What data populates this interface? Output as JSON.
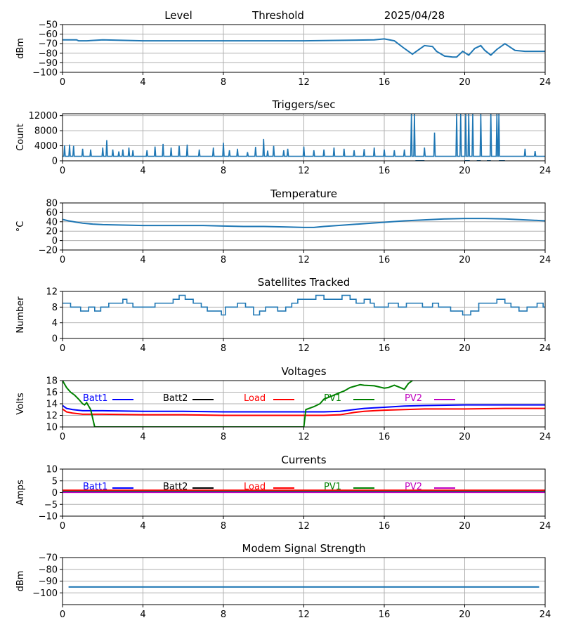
{
  "header": {
    "left": "Level",
    "middle": "Threshold",
    "date": "2025/04/28"
  },
  "colors": {
    "series": "#1f77b4",
    "grid": "#b0b0b0",
    "batt1": "#0000ff",
    "batt2": "#000000",
    "load": "#ff0000",
    "pv1": "#008000",
    "pv2": "#bf00bf"
  },
  "chart_data": [
    {
      "type": "line",
      "title": "",
      "ylabel": "dBm",
      "xlim": [
        0,
        24
      ],
      "ylim": [
        -100,
        -50
      ],
      "xticks": [
        "0",
        "4",
        "8",
        "12",
        "16",
        "20",
        "24"
      ],
      "yticks": [
        "−50",
        "−60",
        "−70",
        "−80",
        "−90",
        "−100"
      ],
      "grid": true,
      "series": [
        {
          "x": [
            0,
            0.7,
            0.8,
            1.2,
            2,
            4,
            8,
            12,
            15.5,
            16,
            16.5,
            17,
            17.4,
            17.6,
            18,
            18.4,
            18.6,
            19,
            19.4,
            19.6,
            19.7,
            19.9,
            20.2,
            20.5,
            20.8,
            21,
            21.3,
            21.6,
            22,
            22.5,
            23,
            23.5,
            24
          ],
          "y": [
            -66,
            -66,
            -67,
            -67,
            -66,
            -67,
            -67,
            -67,
            -66,
            -65,
            -67,
            -75,
            -81,
            -78,
            -72,
            -73,
            -78,
            -83,
            -84,
            -84,
            -82,
            -78,
            -82,
            -75,
            -72,
            -77,
            -82,
            -76,
            -70,
            -77,
            -78,
            -78,
            -78
          ]
        }
      ]
    },
    {
      "type": "line",
      "title": "Triggers/sec",
      "ylabel": "Count",
      "xlim": [
        0,
        24
      ],
      "ylim": [
        0,
        12500
      ],
      "xticks": [
        "0",
        "4",
        "8",
        "12",
        "16",
        "20",
        "24"
      ],
      "yticks": [
        "0",
        "4000",
        "8000",
        "12000"
      ],
      "grid": true,
      "baseline": 1200,
      "spikes": [
        [
          0.1,
          4100
        ],
        [
          0.35,
          4300
        ],
        [
          0.55,
          4000
        ],
        [
          1.0,
          3200
        ],
        [
          1.4,
          3000
        ],
        [
          2.0,
          3500
        ],
        [
          2.2,
          5500
        ],
        [
          2.5,
          3000
        ],
        [
          2.8,
          2500
        ],
        [
          3.0,
          3000
        ],
        [
          3.3,
          3500
        ],
        [
          3.5,
          2800
        ],
        [
          4.2,
          2800
        ],
        [
          4.6,
          3800
        ],
        [
          5.0,
          4500
        ],
        [
          5.4,
          3500
        ],
        [
          5.8,
          4000
        ],
        [
          6.2,
          4300
        ],
        [
          6.8,
          3000
        ],
        [
          7.5,
          3500
        ],
        [
          8.0,
          4800
        ],
        [
          8.3,
          2800
        ],
        [
          8.7,
          3200
        ],
        [
          9.2,
          2300
        ],
        [
          9.6,
          3700
        ],
        [
          10.0,
          5800
        ],
        [
          10.2,
          2700
        ],
        [
          10.5,
          4000
        ],
        [
          11.0,
          2800
        ],
        [
          11.2,
          3200
        ],
        [
          12.0,
          3800
        ],
        [
          12.5,
          2800
        ],
        [
          13.0,
          3000
        ],
        [
          13.5,
          3500
        ],
        [
          14.0,
          3200
        ],
        [
          14.5,
          2800
        ],
        [
          15.0,
          3100
        ],
        [
          15.5,
          3500
        ],
        [
          16.0,
          3000
        ],
        [
          16.5,
          2800
        ],
        [
          17.0,
          3000
        ],
        [
          23.0,
          3200
        ],
        [
          23.5,
          2600
        ]
      ],
      "bursts": [
        [
          17.35,
          12500
        ],
        [
          17.5,
          12500
        ],
        [
          18.0,
          3500
        ],
        [
          18.5,
          7500
        ],
        [
          19.6,
          12500
        ],
        [
          19.8,
          12500
        ],
        [
          20.05,
          12500
        ],
        [
          20.2,
          12500
        ],
        [
          20.4,
          12500
        ],
        [
          20.8,
          12500
        ],
        [
          21.3,
          12500
        ],
        [
          21.6,
          12500
        ],
        [
          21.7,
          12500
        ]
      ],
      "dropouts": [
        [
          17.55,
          18.0
        ],
        [
          20.0,
          20.25
        ],
        [
          20.6,
          20.8
        ],
        [
          21.1,
          21.3
        ],
        [
          21.7,
          22.0
        ]
      ]
    },
    {
      "type": "line",
      "title": "Temperature",
      "ylabel": "°C",
      "xlim": [
        0,
        24
      ],
      "ylim": [
        -20,
        80
      ],
      "xticks": [
        "0",
        "4",
        "8",
        "12",
        "16",
        "20",
        "24"
      ],
      "yticks": [
        "80",
        "60",
        "40",
        "20",
        "0",
        "−20"
      ],
      "grid": true,
      "series": [
        {
          "x": [
            0,
            0.3,
            0.7,
            1,
            1.5,
            2,
            3,
            4,
            5,
            6,
            7,
            8,
            9,
            10,
            11,
            12,
            12.5,
            13,
            14,
            15,
            16,
            17,
            18,
            19,
            20,
            21,
            22,
            23,
            24
          ],
          "y": [
            45,
            42,
            39,
            37,
            35,
            34,
            33,
            32,
            32,
            32,
            32,
            31,
            30,
            30,
            29,
            28,
            28,
            30,
            33,
            36,
            39,
            42,
            44,
            46,
            47,
            47,
            46,
            44,
            42
          ]
        }
      ]
    },
    {
      "type": "line",
      "title": "Satellites Tracked",
      "ylabel": "Number",
      "xlim": [
        0,
        24
      ],
      "ylim": [
        0,
        12
      ],
      "xticks": [
        "0",
        "4",
        "8",
        "12",
        "16",
        "20",
        "24"
      ],
      "yticks": [
        "0",
        "4",
        "8",
        "12"
      ],
      "grid": true,
      "steps": {
        "x": [
          0,
          0.4,
          0.6,
          0.9,
          1.3,
          1.6,
          1.9,
          2.3,
          2.8,
          3.0,
          3.2,
          3.5,
          4.0,
          4.6,
          5.5,
          5.8,
          6.1,
          6.5,
          6.9,
          7.2,
          7.6,
          7.9,
          8.1,
          8.7,
          9.1,
          9.5,
          9.8,
          10.1,
          10.7,
          11.1,
          11.4,
          11.7,
          12.3,
          12.6,
          13.0,
          13.5,
          13.9,
          14.3,
          14.6,
          15.0,
          15.3,
          15.5,
          15.8,
          16.2,
          16.7,
          17.1,
          17.5,
          17.9,
          18.4,
          18.7,
          19.0,
          19.3,
          19.7,
          19.9,
          20.3,
          20.7,
          21.6,
          22.0,
          22.3,
          22.7,
          23.1,
          23.6,
          23.9,
          24
        ],
        "y": [
          9,
          8,
          8,
          7,
          8,
          7,
          8,
          9,
          9,
          10,
          9,
          8,
          8,
          9,
          10,
          11,
          10,
          9,
          8,
          7,
          7,
          6,
          8,
          9,
          8,
          6,
          7,
          8,
          7,
          8,
          9,
          10,
          10,
          11,
          10,
          10,
          11,
          10,
          9,
          10,
          9,
          8,
          8,
          9,
          8,
          9,
          9,
          8,
          9,
          8,
          8,
          7,
          7,
          6,
          7,
          9,
          10,
          9,
          8,
          7,
          8,
          9,
          8,
          8
        ]
      }
    },
    {
      "type": "line",
      "title": "Voltages",
      "ylabel": "Volts",
      "xlim": [
        0,
        24
      ],
      "ylim": [
        10,
        18
      ],
      "xticks": [
        "0",
        "4",
        "8",
        "12",
        "16",
        "20",
        "24"
      ],
      "yticks": [
        "10",
        "12",
        "14",
        "16",
        "18"
      ],
      "grid": true,
      "legend": [
        "Batt1",
        "Batt2",
        "Load",
        "PV1",
        "PV2"
      ],
      "series": [
        {
          "name": "Batt1",
          "x": [
            0,
            0.2,
            0.5,
            1,
            2,
            4,
            6,
            8,
            10,
            12,
            13,
            13.8,
            14.5,
            15,
            15.5,
            16,
            17,
            18,
            20,
            22,
            24
          ],
          "y": [
            13.7,
            13.2,
            13.0,
            12.8,
            12.8,
            12.7,
            12.7,
            12.6,
            12.6,
            12.6,
            12.6,
            12.7,
            13.0,
            13.2,
            13.3,
            13.4,
            13.6,
            13.7,
            13.8,
            13.8,
            13.8
          ]
        },
        {
          "name": "Load",
          "x": [
            0,
            0.2,
            0.5,
            1,
            2,
            4,
            6,
            8,
            10,
            12,
            13,
            13.8,
            14.5,
            15,
            15.5,
            16,
            17,
            18,
            20,
            22,
            24
          ],
          "y": [
            13.1,
            12.6,
            12.4,
            12.2,
            12.2,
            12.1,
            12.1,
            12.0,
            12.0,
            12.0,
            12.0,
            12.1,
            12.5,
            12.7,
            12.8,
            12.9,
            13.0,
            13.1,
            13.1,
            13.2,
            13.2
          ]
        },
        {
          "name": "PV1",
          "x": [
            0,
            0.2,
            0.4,
            0.6,
            0.8,
            1.0,
            1.1,
            1.2,
            1.4,
            1.5,
            1.6,
            12,
            12.1,
            12.5,
            12.8,
            13.0,
            13.3,
            13.7,
            14.0,
            14.3,
            14.5,
            14.8,
            15.0,
            15.5,
            16.0,
            16.2,
            16.5,
            16.8,
            17.0,
            17.2,
            17.4
          ],
          "y": [
            18,
            16.8,
            16.0,
            15.5,
            14.8,
            14.0,
            13.8,
            14.2,
            13.0,
            11.5,
            10,
            10,
            13.0,
            13.5,
            14.0,
            14.8,
            15.2,
            15.8,
            16.2,
            16.8,
            17.0,
            17.3,
            17.2,
            17.1,
            16.7,
            16.8,
            17.2,
            16.8,
            16.5,
            17.5,
            18
          ]
        }
      ]
    },
    {
      "type": "line",
      "title": "Currents",
      "ylabel": "Amps",
      "xlim": [
        0,
        24
      ],
      "ylim": [
        -10,
        10
      ],
      "xticks": [
        "0",
        "4",
        "8",
        "12",
        "16",
        "20",
        "24"
      ],
      "yticks": [
        "−10",
        "−5",
        "0",
        "5",
        "10"
      ],
      "grid": true,
      "legend": [
        "Batt1",
        "Batt2",
        "Load",
        "PV1",
        "PV2"
      ],
      "series": [
        {
          "name": "Load",
          "x": [
            0,
            24
          ],
          "y": [
            1,
            1
          ]
        },
        {
          "name": "PV1",
          "x": [
            0,
            24
          ],
          "y": [
            0.5,
            0.5
          ]
        },
        {
          "name": "Batt1",
          "x": [
            0,
            24
          ],
          "y": [
            0.2,
            0.2
          ]
        },
        {
          "name": "PV2",
          "x": [
            0,
            24
          ],
          "y": [
            0.1,
            0.1
          ]
        }
      ]
    },
    {
      "type": "line",
      "title": "Modem Signal Strength",
      "ylabel": "dBm",
      "xlim": [
        0,
        24
      ],
      "ylim": [
        -110,
        -70
      ],
      "xticks": [
        "0",
        "4",
        "8",
        "12",
        "16",
        "20",
        "24"
      ],
      "yticks": [
        "−70",
        "−80",
        "−90",
        "−100"
      ],
      "grid": true,
      "series": [
        {
          "x": [
            0.3,
            23.7
          ],
          "y": [
            -95,
            -95
          ]
        }
      ]
    }
  ]
}
